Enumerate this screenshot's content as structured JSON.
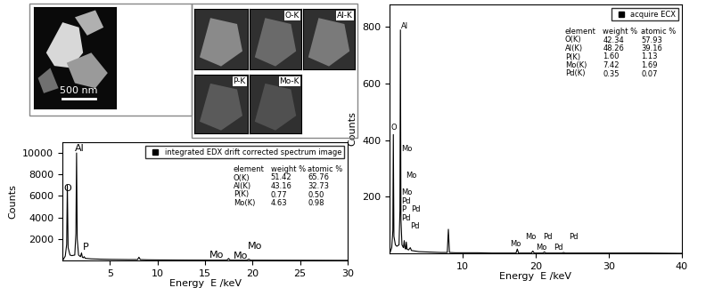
{
  "image_panels": {
    "scale_bar": "500 nm",
    "maps": [
      "O-K",
      "Al-K",
      "P-K",
      "Mo-K"
    ]
  },
  "chart_data": [
    {
      "type": "line",
      "x_label": "Energy  E /keV",
      "y_label": "Counts",
      "xlim": [
        0,
        30
      ],
      "xticks": [
        5,
        10,
        15,
        20,
        25,
        30
      ],
      "ylim": [
        0,
        11000
      ],
      "yticks": [
        2000,
        4000,
        6000,
        8000,
        10000
      ],
      "legend": "upper right",
      "series": [
        {
          "name": "integrated EDX drift corrected spectrum image",
          "color": "#000000",
          "x": [
            0.1,
            0.3,
            0.45,
            0.52,
            0.6,
            0.8,
            1.0,
            1.3,
            1.42,
            1.49,
            1.56,
            1.7,
            1.9,
            2.01,
            2.1,
            2.2,
            2.29,
            2.4,
            3.0,
            4.0,
            5.0,
            6.0,
            7.0,
            7.9,
            8.05,
            8.2,
            9.0,
            10.0,
            12.0,
            14.0,
            16.0,
            17.3,
            17.48,
            17.65,
            19.4,
            19.6,
            19.8,
            22.0,
            25.0,
            28.0,
            30.0
          ],
          "values": [
            100,
            400,
            1500,
            7000,
            1200,
            500,
            450,
            500,
            2500,
            10000,
            2000,
            500,
            350,
            700,
            300,
            250,
            350,
            200,
            150,
            120,
            100,
            90,
            80,
            80,
            300,
            80,
            60,
            50,
            40,
            35,
            30,
            30,
            180,
            30,
            25,
            120,
            25,
            20,
            15,
            10,
            5
          ]
        }
      ],
      "annotations": [
        {
          "text": "Al",
          "x": 1.3,
          "y": 10000
        },
        {
          "text": "O",
          "x": 0.1,
          "y": 6300
        },
        {
          "text": "P",
          "x": 2.1,
          "y": 800
        },
        {
          "text": "Mo",
          "x": 15.5,
          "y": 100
        },
        {
          "text": "Mo",
          "x": 18.0,
          "y": 0
        },
        {
          "text": "Mo",
          "x": 19.5,
          "y": 900
        }
      ],
      "table": {
        "header": [
          "element",
          "weight %",
          "atomic %"
        ],
        "rows": [
          [
            "O(K)",
            "51.42",
            "65.76"
          ],
          [
            "Al(K)",
            "43.16",
            "32.73"
          ],
          [
            "P(K)",
            "0.77",
            "0.50"
          ],
          [
            "Mo(K)",
            "4.63",
            "0.98"
          ]
        ]
      }
    },
    {
      "type": "line",
      "x_label": "Energy  E /keV",
      "y_label": "Counts",
      "xlim": [
        0,
        40
      ],
      "xticks": [
        10,
        20,
        30,
        40
      ],
      "ylim": [
        0,
        880
      ],
      "yticks": [
        200,
        400,
        600,
        800
      ],
      "legend": "upper right",
      "series": [
        {
          "name": "acquire ECX",
          "color": "#000000",
          "x": [
            0.1,
            0.3,
            0.45,
            0.52,
            0.6,
            0.8,
            1.0,
            1.3,
            1.42,
            1.49,
            1.56,
            1.7,
            1.9,
            2.01,
            2.1,
            2.2,
            2.29,
            2.4,
            2.6,
            2.84,
            3.0,
            3.5,
            4.0,
            5.0,
            6.0,
            7.0,
            7.9,
            8.05,
            8.2,
            9.0,
            10.0,
            12.0,
            14.0,
            16.0,
            17.3,
            17.48,
            17.65,
            19.4,
            19.6,
            19.8,
            21.0,
            21.18,
            21.4,
            23.6,
            23.82,
            24.0,
            27.0,
            30.0,
            35.0,
            40.0
          ],
          "values": [
            5,
            20,
            80,
            420,
            60,
            30,
            25,
            30,
            150,
            790,
            120,
            30,
            20,
            45,
            20,
            15,
            40,
            15,
            12,
            20,
            10,
            8,
            6,
            5,
            4,
            3,
            3,
            85,
            3,
            2,
            2,
            2,
            1,
            1,
            1,
            15,
            1,
            1,
            8,
            1,
            1,
            5,
            1,
            1,
            3,
            1,
            1,
            1,
            1,
            0
          ]
        }
      ],
      "annotations": [
        {
          "text": "Al",
          "x": 1.6,
          "y": 790
        },
        {
          "text": "O",
          "x": 0.2,
          "y": 430
        },
        {
          "text": "Mo",
          "x": 1.6,
          "y": 355
        },
        {
          "text": "Mo",
          "x": 2.2,
          "y": 260
        },
        {
          "text": "Mo",
          "x": 1.6,
          "y": 200
        },
        {
          "text": "Pd",
          "x": 1.6,
          "y": 170
        },
        {
          "text": "P",
          "x": 1.6,
          "y": 140
        },
        {
          "text": "Pd",
          "x": 3.0,
          "y": 140
        },
        {
          "text": "Pd",
          "x": 1.6,
          "y": 110
        },
        {
          "text": "Pd",
          "x": 2.8,
          "y": 82
        },
        {
          "text": "Mo",
          "x": 16.5,
          "y": 20
        },
        {
          "text": "Mo",
          "x": 18.5,
          "y": 45
        },
        {
          "text": "Mo",
          "x": 20.0,
          "y": 5
        },
        {
          "text": "Pd",
          "x": 21.0,
          "y": 45
        },
        {
          "text": "Pd",
          "x": 22.5,
          "y": 5
        },
        {
          "text": "Pd",
          "x": 24.5,
          "y": 45
        }
      ],
      "table": {
        "header": [
          "element",
          "weight %",
          "atomic %"
        ],
        "rows": [
          [
            "O(K)",
            "42.34",
            "57.93"
          ],
          [
            "Al(K)",
            "48.26",
            "39.16"
          ],
          [
            "P(K)",
            "1.60",
            "1.13"
          ],
          [
            "Mo(K)",
            "7.42",
            "1.69"
          ],
          [
            "Pd(K)",
            "0.35",
            "0.07"
          ]
        ]
      }
    }
  ]
}
